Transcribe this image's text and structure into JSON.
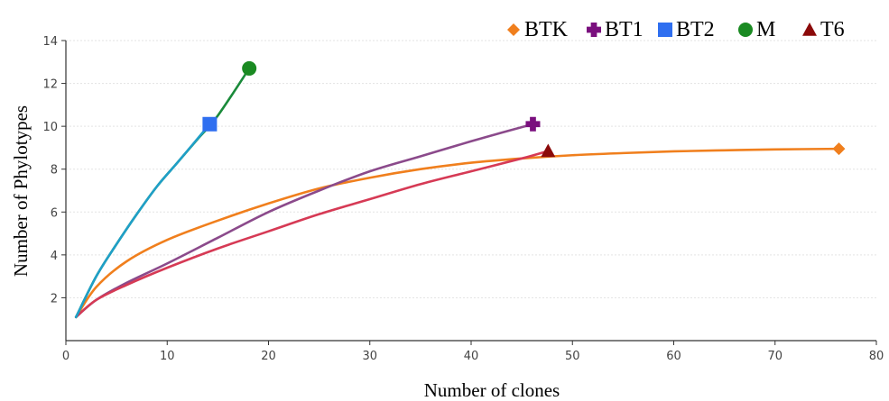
{
  "chart_data": {
    "type": "line",
    "xlabel": "Number of clones",
    "ylabel": "Number of Phylotypes",
    "xlim": [
      0,
      80
    ],
    "ylim": [
      0,
      14
    ],
    "xticks": [
      0,
      10,
      20,
      30,
      40,
      50,
      60,
      70,
      80
    ],
    "yticks": [
      2,
      4,
      6,
      8,
      10,
      12,
      14
    ],
    "grid": "horizontal",
    "legend_position": "top-right",
    "series": [
      {
        "name": "BTK",
        "color": "#f07f1d",
        "marker": "diamond",
        "x": [
          1,
          3,
          6,
          10,
          15,
          20,
          25,
          30,
          35,
          40,
          45,
          50,
          55,
          60,
          65,
          70,
          76.3
        ],
        "y": [
          1.1,
          2.5,
          3.7,
          4.7,
          5.6,
          6.4,
          7.1,
          7.6,
          8.0,
          8.3,
          8.5,
          8.65,
          8.75,
          8.83,
          8.88,
          8.92,
          8.95
        ]
      },
      {
        "name": "BT1",
        "color": "#8b4a8b",
        "marker": "cross",
        "x": [
          1,
          3,
          6,
          10,
          15,
          20,
          25,
          30,
          35,
          40,
          43,
          46.1
        ],
        "y": [
          1.1,
          1.9,
          2.7,
          3.6,
          4.8,
          6.0,
          7.0,
          7.9,
          8.6,
          9.3,
          9.7,
          10.1
        ]
      },
      {
        "name": "BT2",
        "color": "#1f9fc8",
        "marker": "square",
        "x": [
          1,
          3,
          5,
          7,
          9,
          11,
          14.2
        ],
        "y": [
          1.1,
          3.0,
          4.5,
          5.9,
          7.2,
          8.3,
          10.1
        ]
      },
      {
        "name": "M",
        "color": "#1a8a3a",
        "marker": "circle",
        "x": [
          1,
          3,
          5,
          7,
          9,
          11,
          13,
          15,
          18.1
        ],
        "y": [
          1.1,
          3.0,
          4.5,
          5.9,
          7.2,
          8.3,
          9.4,
          10.5,
          12.7
        ]
      },
      {
        "name": "T6",
        "color": "#d63a55",
        "marker": "triangle",
        "x": [
          1,
          3,
          6,
          10,
          15,
          20,
          25,
          30,
          35,
          40,
          45,
          47.6
        ],
        "y": [
          1.1,
          1.9,
          2.6,
          3.4,
          4.3,
          5.1,
          5.9,
          6.6,
          7.3,
          7.9,
          8.5,
          8.85
        ]
      }
    ],
    "legend_colors": {
      "BTK": "#f07f1d",
      "BT1": "#7a0f7e",
      "BT2": "#2f6ff0",
      "M": "#1a8a22",
      "T6": "#8b0a0a"
    }
  }
}
